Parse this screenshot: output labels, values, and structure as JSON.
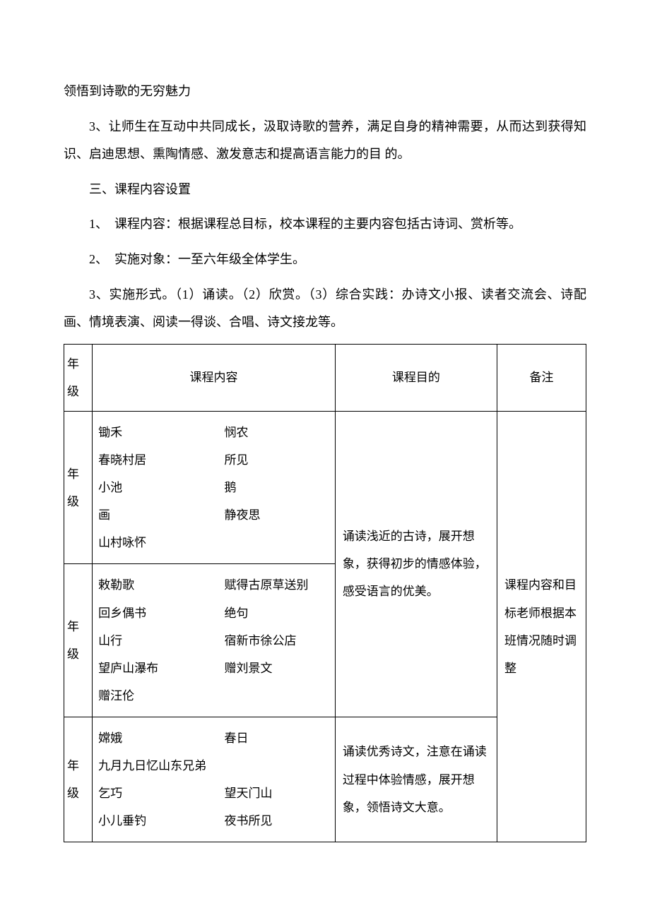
{
  "paragraphs": {
    "p1": "领悟到诗歌的无穷魅力",
    "p2": "3、让师生在互动中共同成长，汲取诗歌的营养，满足自身的精神需要，从而达到获得知识、启迪思想、熏陶情感、激发意志和提高语言能力的目 的。",
    "p3": "三、课程内容设置",
    "p4": "1、　课程内容：根据课程总目标，校本课程的主要内容包括古诗词、赏析等。",
    "p5": "2、　实施对象：一至六年级全体学生。",
    "p6": "3、实施形式。（1）诵读。（2）欣赏。（3）综合实践：办诗文小报、读者交流会、诗配画、情境表演、阅读一得谈、合唱、诗文接龙等。"
  },
  "table": {
    "headers": {
      "grade": "年级",
      "content": "课程内容",
      "purpose": "课程目的",
      "note": "备注"
    },
    "rows": [
      {
        "grade": "年级",
        "content_pairs": [
          [
            "锄禾",
            "悯农"
          ],
          [
            "春晓村居",
            "所见"
          ],
          [
            "小池",
            "鹅"
          ],
          [
            "画",
            "静夜思"
          ],
          [
            "山村咏怀",
            ""
          ]
        ]
      },
      {
        "grade": "年级",
        "content_pairs": [
          [
            "敕勒歌",
            "赋得古原草送别"
          ],
          [
            "回乡偶书",
            "绝句"
          ],
          [
            "山行",
            "宿新市徐公店"
          ],
          [
            "望庐山瀑布",
            "赠刘景文"
          ],
          [
            "赠汪伦",
            ""
          ]
        ]
      },
      {
        "grade": "年级",
        "content_pairs": [
          [
            "嫦娥",
            "春日"
          ],
          [
            "九月九日忆山东兄弟",
            ""
          ],
          [
            "乞巧",
            "望天门山"
          ],
          [
            "小儿垂钓",
            "夜书所见"
          ]
        ]
      }
    ],
    "purpose1": "诵读浅近的古诗，展开想象，获得初步的情感体验，感受语言的优美。",
    "purpose2": "诵读优秀诗文，注意在诵读过程中体验情感，展开想象，领悟诗文大意。",
    "note_text": "课程内容和目标老师根据本班情况随时调整"
  }
}
